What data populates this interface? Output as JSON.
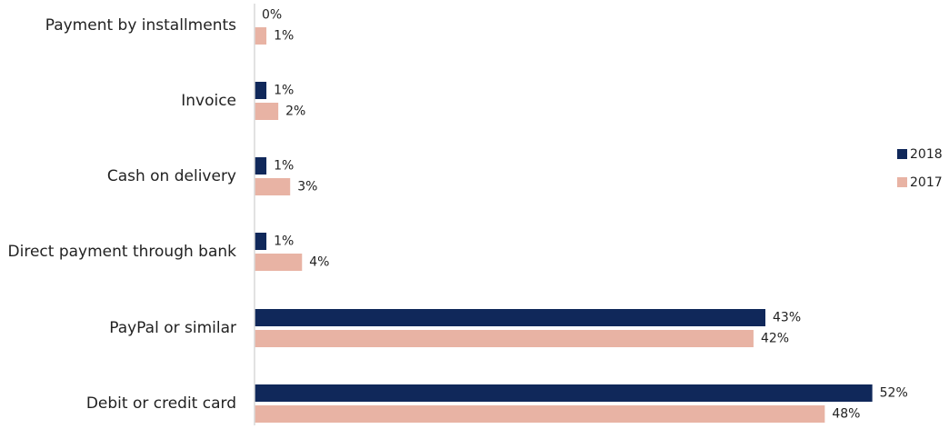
{
  "chart_data": {
    "type": "bar",
    "orientation": "horizontal",
    "categories": [
      "Payment by installments",
      "Invoice",
      "Cash on delivery",
      "Direct payment through bank",
      "PayPal or similar",
      "Debit or credit card"
    ],
    "series": [
      {
        "name": "2018",
        "values": [
          0,
          1,
          1,
          1,
          43,
          52
        ],
        "labels": [
          "0%",
          "1%",
          "1%",
          "1%",
          "43%",
          "52%"
        ],
        "color": "#10285a"
      },
      {
        "name": "2017",
        "values": [
          1,
          2,
          3,
          4,
          42,
          48
        ],
        "labels": [
          "1%",
          "2%",
          "3%",
          "4%",
          "42%",
          "48%"
        ],
        "color": "#e8b3a4"
      }
    ],
    "value_unit": "%",
    "xlim": [
      0,
      52
    ],
    "grid": false,
    "legend_position": "right",
    "axis_color": "#d9d9d9",
    "label_color": "#222222"
  }
}
